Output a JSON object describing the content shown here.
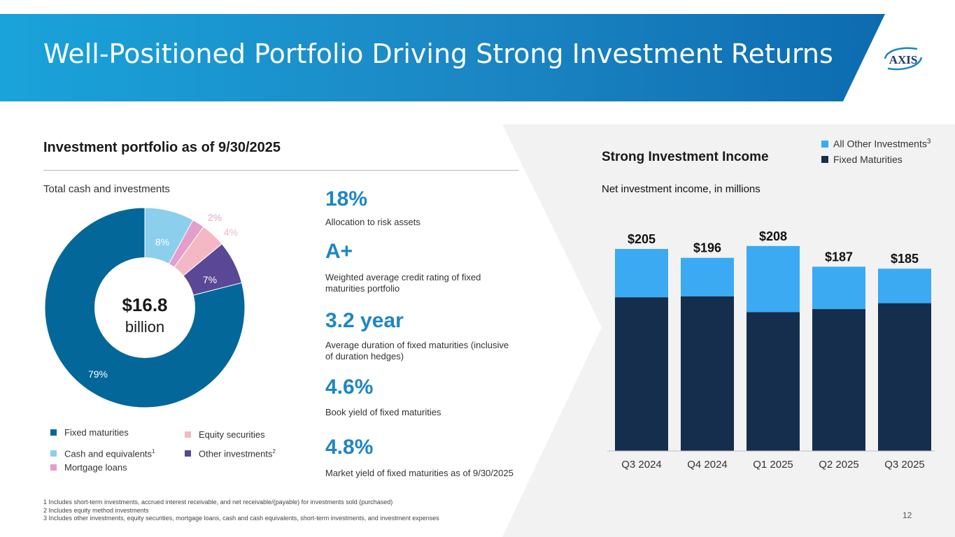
{
  "header": {
    "title": "Well-Positioned Portfolio Driving Strong Investment Returns",
    "logo_text": "AXIS"
  },
  "portfolio": {
    "section_title": "Investment portfolio as of 9/30/2025",
    "subtitle": "Total cash and investments",
    "center_value": "$16.8",
    "center_unit": "billion"
  },
  "stats": [
    {
      "value": "18%",
      "desc": "Allocation to risk assets"
    },
    {
      "value": "A+",
      "desc": "Weighted average credit rating of fixed maturities portfolio"
    },
    {
      "value": "3.2 year",
      "desc": "Average duration of fixed maturities (inclusive of duration hedges)"
    },
    {
      "value": "4.6%",
      "desc": "Book yield of fixed maturities"
    },
    {
      "value": "4.8%",
      "desc": "Market yield of fixed maturities as of 9/30/2025"
    }
  ],
  "legend_sup": {
    "cash": "1",
    "other": "2",
    "all_other": "3"
  },
  "footnotes": [
    "1 Includes short-term investments, accrued interest receivable, and net receivable/(payable) for investments sold (purchased)",
    "2 Includes equity method investments",
    "3 Includes other investments, equity securities, mortgage loans, cash and cash equivalents, short-term investments, and investment expenses"
  ],
  "page_number": "12",
  "income": {
    "title": "Strong Investment Income",
    "subtitle": "Net investment income, in millions"
  },
  "chart_data": [
    {
      "type": "pie",
      "title": "Total cash and investments",
      "slices": [
        {
          "label": "Cash and equivalents",
          "value": 8,
          "text": "8%",
          "color": "#8ccfec"
        },
        {
          "label": "Mortgage loans",
          "value": 2,
          "text": "2%",
          "color": "#e39ecb"
        },
        {
          "label": "Equity securities",
          "value": 4,
          "text": "4%",
          "color": "#f4b8c5"
        },
        {
          "label": "Other investments",
          "value": 7,
          "text": "7%",
          "color": "#5a4796"
        },
        {
          "label": "Fixed maturities",
          "value": 79,
          "text": "79%",
          "color": "#036799"
        }
      ]
    },
    {
      "type": "bar",
      "stacked": true,
      "categories": [
        "Q3 2024",
        "Q4 2024",
        "Q1 2025",
        "Q2 2025",
        "Q3 2025"
      ],
      "series": [
        {
          "name": "Fixed Maturities",
          "color": "#152e4e",
          "values": [
            156,
            157,
            141,
            144,
            150
          ]
        },
        {
          "name": "All Other Investments",
          "color": "#3baaf3",
          "values": [
            49,
            39,
            67,
            43,
            35
          ]
        }
      ],
      "totals": [
        "$205",
        "$196",
        "$208",
        "$187",
        "$185"
      ],
      "ylim": [
        0,
        210
      ]
    }
  ]
}
